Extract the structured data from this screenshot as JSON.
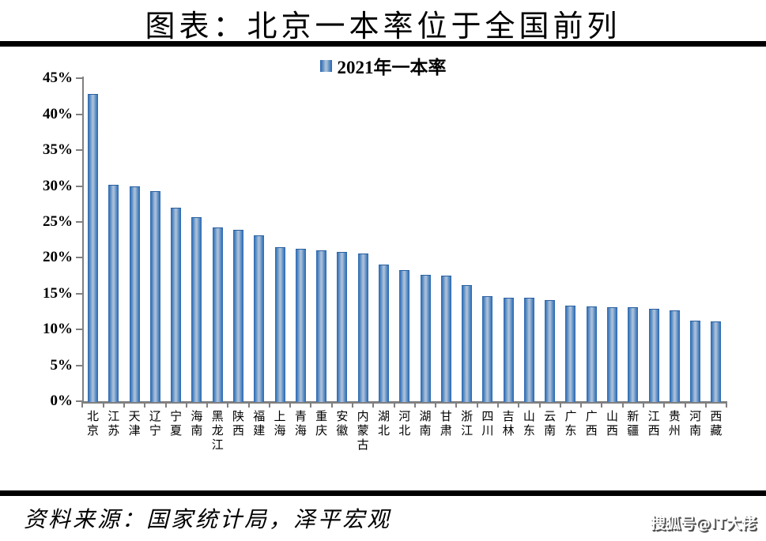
{
  "header": {
    "title": "图表：北京一本率位于全国前列"
  },
  "legend": {
    "label": "2021年一本率"
  },
  "chart_data": {
    "type": "bar",
    "title": "图表：北京一本率位于全国前列",
    "series_name": "2021年一本率",
    "unit": "percent",
    "categories": [
      "北京",
      "江苏",
      "天津",
      "辽宁",
      "宁夏",
      "海南",
      "黑龙江",
      "陕西",
      "福建",
      "上海",
      "青海",
      "重庆",
      "安徽",
      "内蒙古",
      "湖北",
      "河北",
      "湖南",
      "甘肃",
      "浙江",
      "四川",
      "吉林",
      "山东",
      "云南",
      "广东",
      "广西",
      "山西",
      "新疆",
      "江西",
      "贵州",
      "河南",
      "西藏"
    ],
    "values": [
      42.8,
      30.2,
      30.0,
      29.3,
      27.0,
      25.7,
      24.2,
      23.9,
      23.1,
      21.5,
      21.3,
      21.0,
      20.8,
      20.6,
      19.0,
      18.3,
      17.6,
      17.5,
      16.2,
      14.7,
      14.4,
      14.4,
      14.1,
      13.3,
      13.2,
      13.1,
      13.1,
      12.9,
      12.7,
      11.2,
      11.1
    ],
    "ylim": [
      0,
      45
    ],
    "ytick_step": 5,
    "yticks": [
      "0%",
      "5%",
      "10%",
      "15%",
      "20%",
      "25%",
      "30%",
      "35%",
      "40%",
      "45%"
    ],
    "grid": false,
    "legend_position": "top-center",
    "bar_color_edge": "#2c67ae",
    "bar_color_center": "#a9bed8",
    "axis_color": "#808080"
  },
  "footer": {
    "source": "资料来源：国家统计局，泽平宏观",
    "watermark": "搜狐号@IT大佬"
  }
}
